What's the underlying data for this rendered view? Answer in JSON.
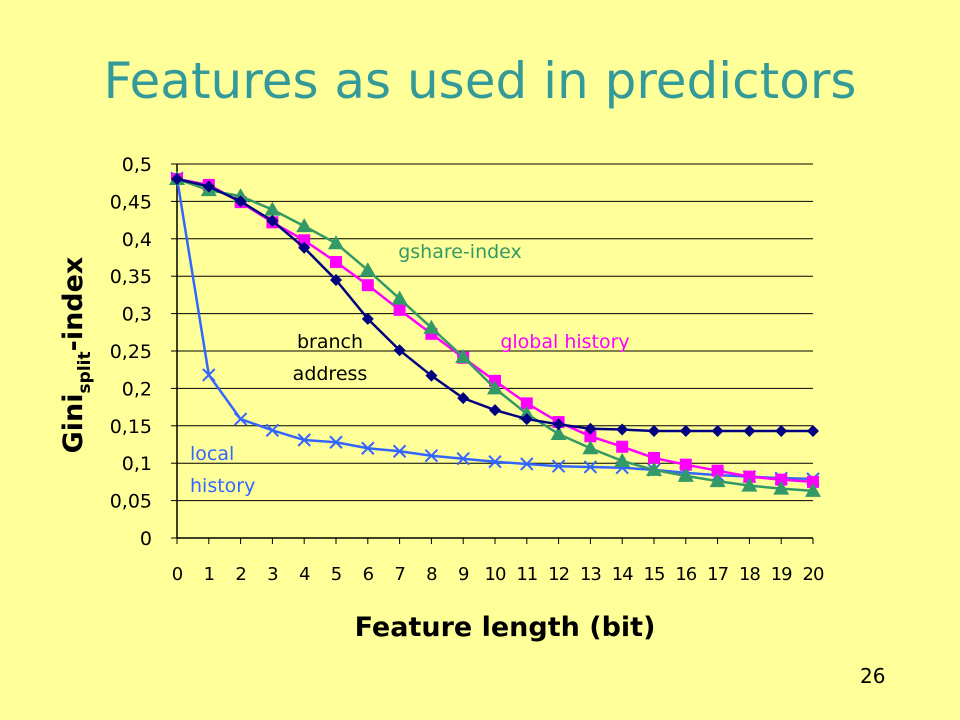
{
  "chart_data": {
    "type": "line",
    "title": "Features as used in predictors",
    "x_label": "Feature length (bit)",
    "y_label": {
      "main": "Gini",
      "subscript": "split",
      "suffix": "-index"
    },
    "page_number": "26",
    "x": [
      0,
      1,
      2,
      3,
      4,
      5,
      6,
      7,
      8,
      9,
      10,
      11,
      12,
      13,
      14,
      15,
      16,
      17,
      18,
      19,
      20
    ],
    "xlim": [
      0,
      20
    ],
    "xticks": [
      0,
      1,
      2,
      3,
      4,
      5,
      6,
      7,
      8,
      9,
      10,
      11,
      12,
      13,
      14,
      15,
      16,
      17,
      18,
      19,
      20
    ],
    "ylim": [
      0,
      0.5
    ],
    "yticks": [
      0,
      {
        "value": 0.05,
        "label": "0,05"
      },
      {
        "value": 0.1,
        "label": "0,1"
      },
      {
        "value": 0.15,
        "label": "0,15"
      },
      {
        "value": 0.2,
        "label": "0,2"
      },
      {
        "value": 0.25,
        "label": "0,25"
      },
      {
        "value": 0.3,
        "label": "0,3"
      },
      {
        "value": 0.35,
        "label": "0,35"
      },
      {
        "value": 0.4,
        "label": "0,4"
      },
      {
        "value": 0.45,
        "label": "0,45"
      },
      {
        "value": 0.5,
        "label": "0,5"
      }
    ],
    "grid": true,
    "series": [
      {
        "name": "local history",
        "color": "#3366ff",
        "marker": "x",
        "values": [
          0.481,
          0.218,
          0.159,
          0.144,
          0.131,
          0.128,
          0.12,
          0.116,
          0.11,
          0.106,
          0.102,
          0.099,
          0.096,
          0.095,
          0.094,
          0.091,
          0.087,
          0.084,
          0.082,
          0.08,
          0.079
        ]
      },
      {
        "name": "global history",
        "color": "#ff00ff",
        "marker": "square",
        "values": [
          0.48,
          0.472,
          0.449,
          0.422,
          0.398,
          0.369,
          0.338,
          0.305,
          0.273,
          0.241,
          0.21,
          0.18,
          0.155,
          0.136,
          0.122,
          0.107,
          0.098,
          0.09,
          0.082,
          0.078,
          0.075
        ]
      },
      {
        "name": "gshare-index",
        "color": "#339966",
        "marker": "triangle",
        "values": [
          0.48,
          0.465,
          0.457,
          0.439,
          0.417,
          0.394,
          0.358,
          0.32,
          0.281,
          0.242,
          0.2,
          0.166,
          0.139,
          0.12,
          0.103,
          0.091,
          0.083,
          0.076,
          0.07,
          0.066,
          0.063
        ]
      },
      {
        "name": "branch address",
        "color": "#000080",
        "marker": "diamond",
        "values": [
          0.48,
          0.47,
          0.45,
          0.424,
          0.388,
          0.345,
          0.293,
          0.251,
          0.217,
          0.187,
          0.171,
          0.159,
          0.152,
          0.146,
          0.145,
          0.143,
          0.143,
          0.143,
          0.143,
          0.143,
          0.143
        ]
      }
    ]
  }
}
